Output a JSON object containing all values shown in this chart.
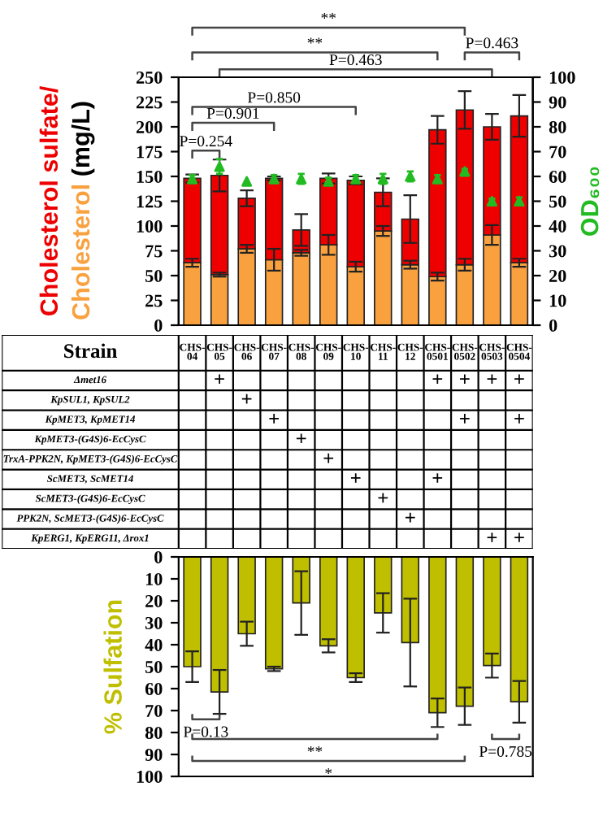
{
  "chart_data": [
    {
      "type": "bar",
      "stacked": true,
      "categories": [
        "CHS-04",
        "CHS-05",
        "CHS-06",
        "CHS-07",
        "CHS-08",
        "CHS-09",
        "CHS-10",
        "CHS-11",
        "CHS-12",
        "CHS-0501",
        "CHS-0502",
        "CHS-0503",
        "CHS-0504"
      ],
      "series": [
        {
          "name": "Cholesterol",
          "type": "bar",
          "color": "#f9a13f",
          "values": [
            63,
            51,
            77,
            66,
            73,
            81,
            59,
            95,
            61,
            49,
            61,
            91,
            63
          ],
          "errors": [
            4,
            2,
            4,
            11,
            3,
            10,
            5,
            5,
            4,
            4,
            6,
            10,
            4
          ]
        },
        {
          "name": "Cholesterol sulfate/",
          "type": "bar",
          "color": "#ee0000",
          "values": [
            85,
            100,
            51,
            82,
            23,
            67,
            87,
            39,
            46,
            148,
            156,
            109,
            148
          ],
          "errors": [
            4,
            16,
            8,
            2,
            16,
            5,
            4,
            14,
            24,
            14,
            19,
            13,
            21
          ]
        },
        {
          "type": "scatter",
          "axis": "y2",
          "marker": "triangle",
          "color": "#22bb22",
          "values": [
            59,
            64,
            58,
            59,
            59,
            58,
            59,
            59,
            60,
            59,
            62,
            50,
            50
          ],
          "errors": [
            1.5,
            3,
            null,
            1.5,
            2,
            1.5,
            1.5,
            2,
            2,
            1.5,
            1,
            1,
            1.5
          ]
        }
      ],
      "ylabel": "(mg/L)",
      "y2label": "OD₆₀₀",
      "ylim": [
        0,
        250
      ],
      "yticks": [
        0,
        25,
        50,
        75,
        100,
        125,
        150,
        175,
        200,
        225,
        250
      ],
      "y2lim": [
        0,
        100
      ],
      "y2ticks": [
        0,
        10,
        20,
        30,
        40,
        50,
        60,
        70,
        80,
        90,
        100
      ],
      "grid": false,
      "annotations": [
        "P=0.254",
        "P=0.901",
        "P=0.850",
        "P=0.463",
        "**",
        "P=0.463",
        "**"
      ]
    },
    {
      "type": "other",
      "title": "Strain",
      "y_categories": [
        "Δmet16",
        "KpSUL1, KpSUL2",
        "KpMET3, KpMET14",
        "KpMET3-(G4S)6-EcCysC",
        "TrxA-PPK2N, KpMET3-(G4S)6-EcCysC",
        "ScMET3, ScMET14",
        "ScMET3-(G4S)6-EcCysC",
        "PPK2N, ScMET3-(G4S)6-EcCysC",
        "KpERG1, KpERG11, Δrox1"
      ],
      "cell_labels": [
        [
          null,
          "+",
          null,
          null,
          null,
          null,
          null,
          null,
          null,
          "+",
          "+",
          "+",
          "+"
        ],
        [
          null,
          null,
          "+",
          null,
          null,
          null,
          null,
          null,
          null,
          null,
          null,
          null,
          null
        ],
        [
          null,
          null,
          null,
          "+",
          null,
          null,
          null,
          null,
          null,
          null,
          "+",
          null,
          "+"
        ],
        [
          null,
          null,
          null,
          null,
          "+",
          null,
          null,
          null,
          null,
          null,
          null,
          null,
          null
        ],
        [
          null,
          null,
          null,
          null,
          null,
          "+",
          null,
          null,
          null,
          null,
          null,
          null,
          null
        ],
        [
          null,
          null,
          null,
          null,
          null,
          null,
          "+",
          null,
          null,
          "+",
          null,
          null,
          null
        ],
        [
          null,
          null,
          null,
          null,
          null,
          null,
          null,
          "+",
          null,
          null,
          null,
          null,
          null
        ],
        [
          null,
          null,
          null,
          null,
          null,
          null,
          null,
          null,
          "+",
          null,
          null,
          null,
          null
        ],
        [
          null,
          null,
          null,
          null,
          null,
          null,
          null,
          null,
          null,
          null,
          null,
          "+",
          "+"
        ]
      ]
    },
    {
      "type": "bar",
      "categories": [
        null,
        null,
        null,
        null,
        null,
        null,
        null,
        null,
        null,
        null,
        null,
        null,
        null
      ],
      "series": [
        {
          "color": "#bfbf00",
          "values": [
            50,
            61.5,
            35,
            51,
            21,
            40.5,
            55,
            25.5,
            39,
            71,
            68,
            49.5,
            66
          ],
          "errors": [
            7,
            10,
            5.5,
            1,
            14.5,
            3,
            2,
            9,
            20,
            6.5,
            8.5,
            5.5,
            9.5
          ]
        }
      ],
      "ylabel": "% Sulfation",
      "ylim": [
        100,
        0
      ],
      "yticks": [
        0,
        10,
        20,
        30,
        40,
        50,
        60,
        70,
        80,
        90,
        100
      ],
      "tick_labels": "y",
      "grid": false,
      "annotations": [
        "P=0.13",
        "**",
        "*",
        "P=0.785"
      ]
    }
  ]
}
